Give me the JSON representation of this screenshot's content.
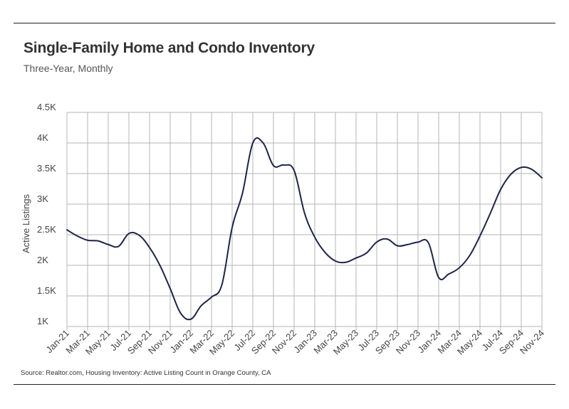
{
  "header": {
    "title": "Single-Family Home and Condo Inventory",
    "subtitle": "Three-Year, Monthly"
  },
  "footer": {
    "source": "Source: Realtor.com, Housing Inventory: Active Listing Count in Orange County, CA"
  },
  "colors": {
    "series": "#1c2547",
    "grid": "#b5b5b5",
    "rule": "#222222"
  },
  "chart_data": {
    "type": "line",
    "title": "Single-Family Home and Condo Inventory",
    "subtitle": "Three-Year, Monthly",
    "xlabel": "",
    "ylabel": "Active Listings",
    "ylim": [
      1000,
      4500
    ],
    "yticks": [
      1000,
      1500,
      2000,
      2500,
      3000,
      3500,
      4000,
      4500
    ],
    "ytick_labels": [
      "1K",
      "1.5K",
      "2K",
      "2.5K",
      "3K",
      "3.5K",
      "4K",
      "4.5K"
    ],
    "xtick_labels": [
      "Jan-21",
      "Mar-21",
      "May-21",
      "Jul-21",
      "Sep-21",
      "Nov-21",
      "Jan-22",
      "Mar-22",
      "May-22",
      "Jul-22",
      "Sep-22",
      "Nov-22",
      "Jan-23",
      "Mar-23",
      "May-23",
      "Jul-23",
      "Sep-23",
      "Nov-23",
      "Jan-24",
      "Mar-24",
      "May-24",
      "Jul-24",
      "Sep-24",
      "Nov-24"
    ],
    "grid": true,
    "legend": "none",
    "x": [
      "Jan-21",
      "Feb-21",
      "Mar-21",
      "Apr-21",
      "May-21",
      "Jun-21",
      "Jul-21",
      "Aug-21",
      "Sep-21",
      "Oct-21",
      "Nov-21",
      "Dec-21",
      "Jan-22",
      "Feb-22",
      "Mar-22",
      "Apr-22",
      "May-22",
      "Jun-22",
      "Jul-22",
      "Aug-22",
      "Sep-22",
      "Oct-22",
      "Nov-22",
      "Dec-22",
      "Jan-23",
      "Feb-23",
      "Mar-23",
      "Apr-23",
      "May-23",
      "Jun-23",
      "Jul-23",
      "Aug-23",
      "Sep-23",
      "Oct-23",
      "Nov-23",
      "Dec-23",
      "Jan-24",
      "Feb-24",
      "Mar-24",
      "Apr-24",
      "May-24",
      "Jun-24",
      "Jul-24",
      "Aug-24",
      "Sep-24",
      "Oct-24",
      "Nov-24"
    ],
    "series": [
      {
        "name": "",
        "values": [
          2580,
          2480,
          2410,
          2400,
          2340,
          2310,
          2520,
          2490,
          2290,
          2000,
          1620,
          1220,
          1120,
          1340,
          1480,
          1680,
          2620,
          3180,
          4000,
          4000,
          3630,
          3640,
          3550,
          2860,
          2460,
          2210,
          2070,
          2050,
          2120,
          2200,
          2380,
          2430,
          2320,
          2340,
          2380,
          2370,
          1800,
          1860,
          1960,
          2160,
          2480,
          2850,
          3240,
          3490,
          3600,
          3570,
          3430
        ]
      }
    ]
  }
}
